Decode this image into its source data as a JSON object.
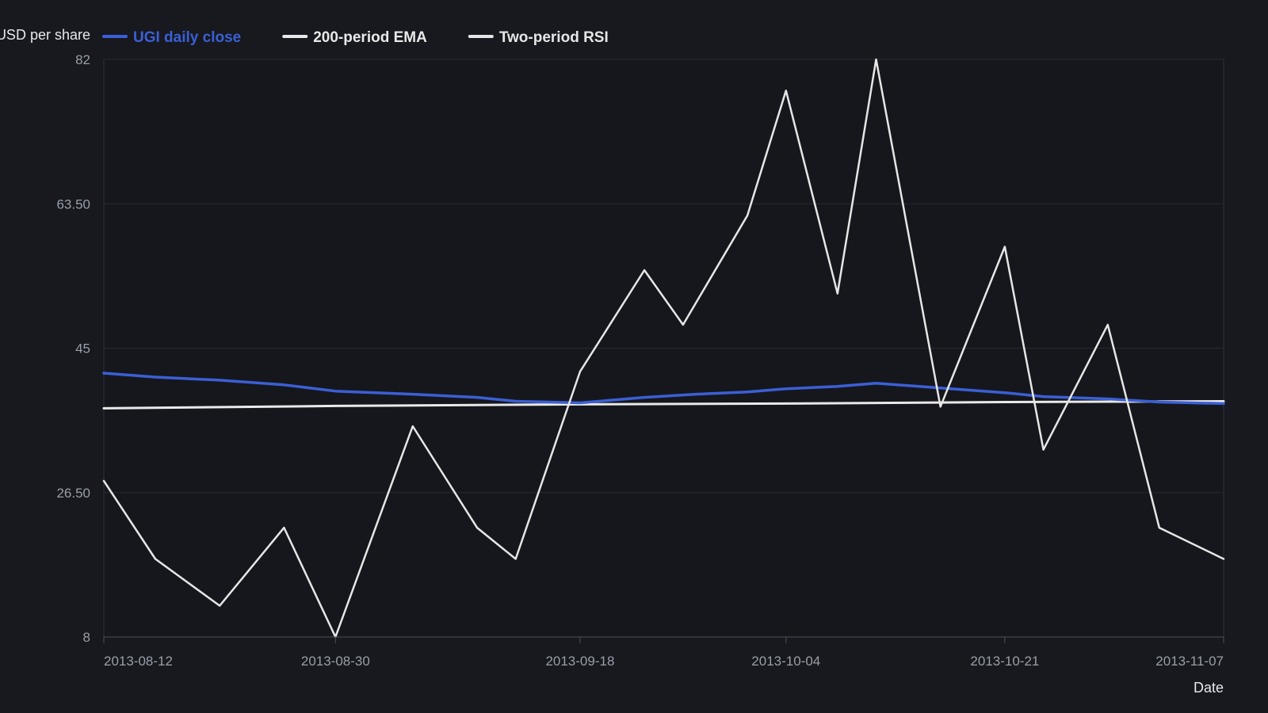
{
  "chart_data": {
    "type": "line",
    "title": "",
    "xlabel": "Date",
    "ylabel": "USD per share",
    "ylim": [
      8,
      82
    ],
    "yticks": [
      "82",
      "63.50",
      "45",
      "26.50",
      "8"
    ],
    "ytick_values": [
      82,
      63.5,
      45,
      26.5,
      8
    ],
    "xlim": [
      "2013-08-12",
      "2013-11-07"
    ],
    "xticks": [
      "2013-08-12",
      "2013-08-30",
      "2013-09-18",
      "2013-10-04",
      "2013-10-21",
      "2013-11-07"
    ],
    "grid": true,
    "legend_position": "top-left",
    "colors": {
      "background": "#17191e",
      "plot_background": "#15171c",
      "grid": "#262a31",
      "axis": "#4a4f59"
    },
    "series": [
      {
        "name": "UGI daily close",
        "color": "#3b5fd6",
        "width": 3.5,
        "points": [
          {
            "x": "2013-08-12",
            "y": 41.8
          },
          {
            "x": "2013-08-16",
            "y": 41.3
          },
          {
            "x": "2013-08-21",
            "y": 40.9
          },
          {
            "x": "2013-08-26",
            "y": 40.3
          },
          {
            "x": "2013-08-30",
            "y": 39.5
          },
          {
            "x": "2013-09-05",
            "y": 39.1
          },
          {
            "x": "2013-09-10",
            "y": 38.7
          },
          {
            "x": "2013-09-13",
            "y": 38.2
          },
          {
            "x": "2013-09-18",
            "y": 38.0
          },
          {
            "x": "2013-09-23",
            "y": 38.7
          },
          {
            "x": "2013-09-27",
            "y": 39.1
          },
          {
            "x": "2013-10-01",
            "y": 39.4
          },
          {
            "x": "2013-10-04",
            "y": 39.8
          },
          {
            "x": "2013-10-08",
            "y": 40.1
          },
          {
            "x": "2013-10-11",
            "y": 40.5
          },
          {
            "x": "2013-10-16",
            "y": 39.9
          },
          {
            "x": "2013-10-21",
            "y": 39.3
          },
          {
            "x": "2013-10-24",
            "y": 38.8
          },
          {
            "x": "2013-10-29",
            "y": 38.5
          },
          {
            "x": "2013-11-02",
            "y": 38.1
          },
          {
            "x": "2013-11-07",
            "y": 37.9
          }
        ]
      },
      {
        "name": "200-period EMA",
        "color": "#e9e9e9",
        "width": 3,
        "points": [
          {
            "x": "2013-08-12",
            "y": 37.3
          },
          {
            "x": "2013-08-30",
            "y": 37.6
          },
          {
            "x": "2013-09-18",
            "y": 37.8
          },
          {
            "x": "2013-10-04",
            "y": 37.9
          },
          {
            "x": "2013-10-21",
            "y": 38.1
          },
          {
            "x": "2013-11-07",
            "y": 38.2
          }
        ]
      },
      {
        "name": "Two-period RSI",
        "color": "#e6e6e6",
        "width": 2.5,
        "points": [
          {
            "x": "2013-08-12",
            "y": 28.0
          },
          {
            "x": "2013-08-16",
            "y": 18.0
          },
          {
            "x": "2013-08-21",
            "y": 12.0
          },
          {
            "x": "2013-08-26",
            "y": 22.0
          },
          {
            "x": "2013-08-30",
            "y": 8.0
          },
          {
            "x": "2013-09-05",
            "y": 35.0
          },
          {
            "x": "2013-09-10",
            "y": 22.0
          },
          {
            "x": "2013-09-13",
            "y": 18.0
          },
          {
            "x": "2013-09-18",
            "y": 42.0
          },
          {
            "x": "2013-09-23",
            "y": 55.0
          },
          {
            "x": "2013-09-26",
            "y": 48.0
          },
          {
            "x": "2013-10-01",
            "y": 62.0
          },
          {
            "x": "2013-10-04",
            "y": 78.0
          },
          {
            "x": "2013-10-08",
            "y": 52.0
          },
          {
            "x": "2013-10-11",
            "y": 82.0
          },
          {
            "x": "2013-10-16",
            "y": 37.5
          },
          {
            "x": "2013-10-21",
            "y": 58.0
          },
          {
            "x": "2013-10-24",
            "y": 32.0
          },
          {
            "x": "2013-10-29",
            "y": 48.0
          },
          {
            "x": "2013-11-02",
            "y": 22.0
          },
          {
            "x": "2013-11-07",
            "y": 18.0
          }
        ]
      }
    ]
  }
}
